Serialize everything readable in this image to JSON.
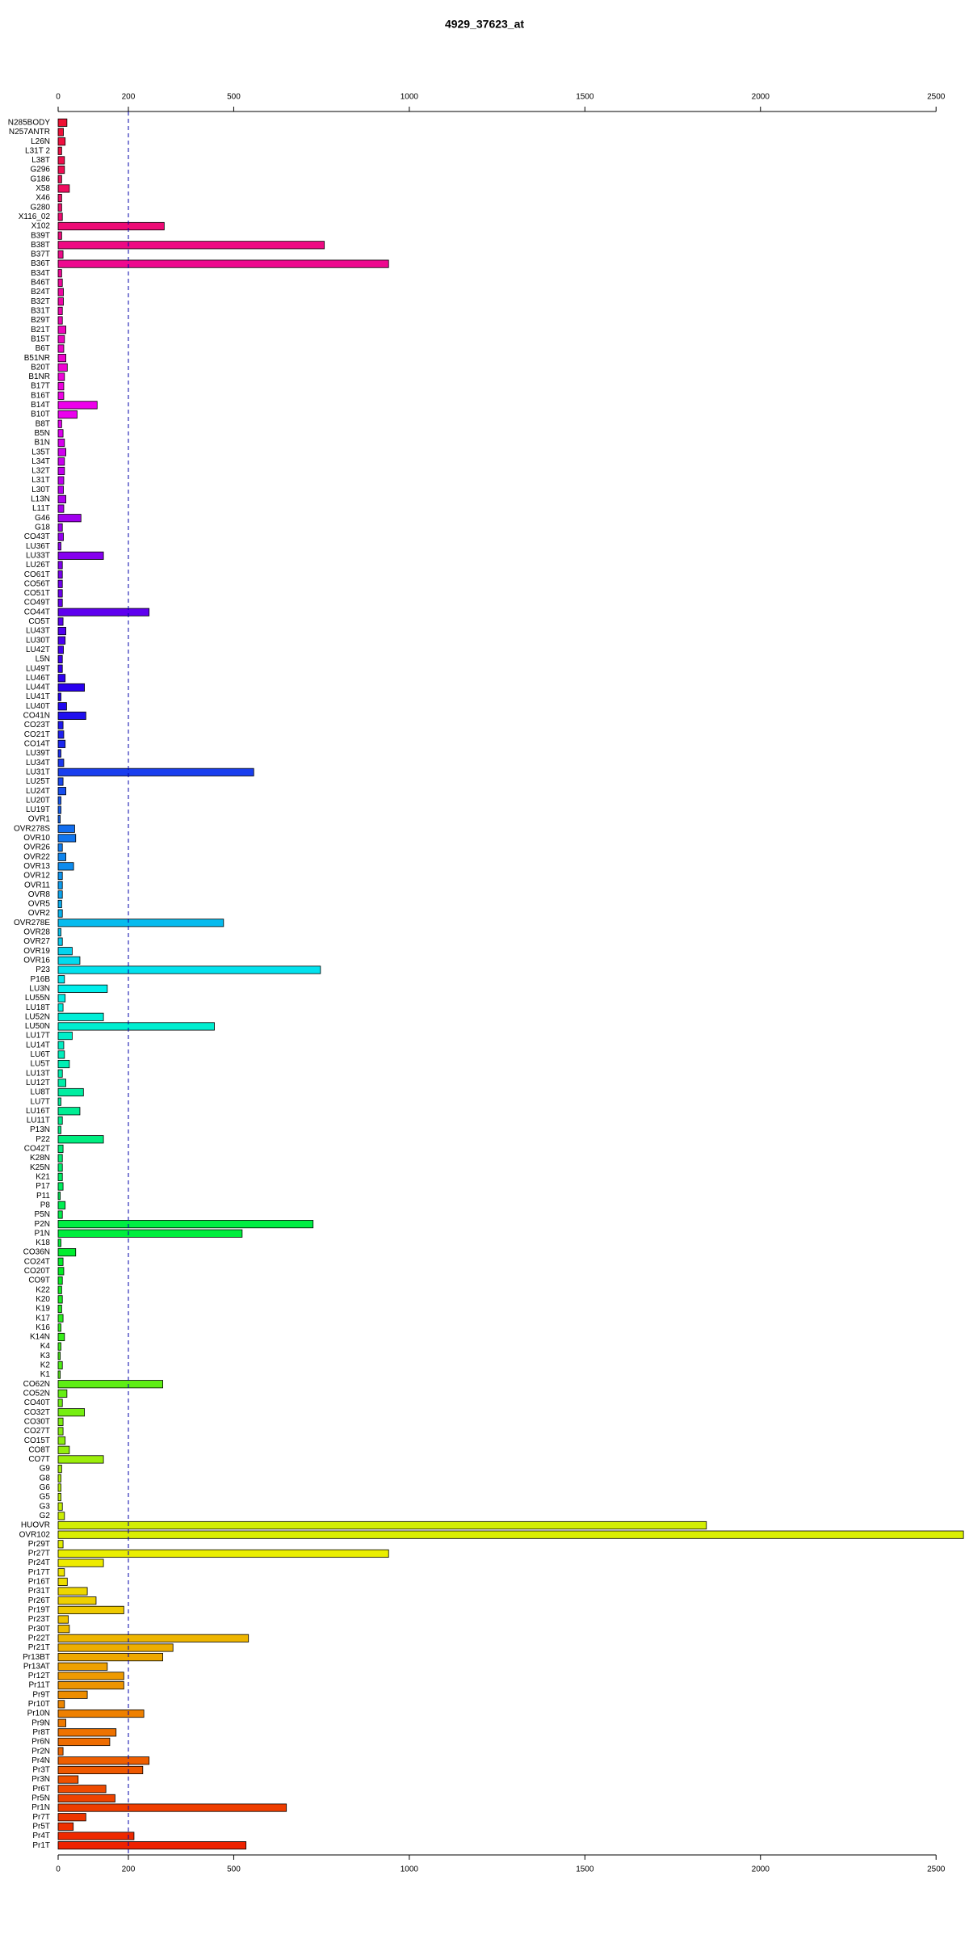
{
  "chart_data": {
    "type": "barh",
    "title": "4929_37623_at",
    "categories": [
      "N285BODY",
      "N257ANTR",
      "L26N",
      "L31T 2",
      "L38T",
      "G296",
      "G186",
      "X58",
      "X46",
      "G280",
      "X116_02",
      "X102",
      "B39T",
      "B38T",
      "B37T",
      "B36T",
      "B34T",
      "B46T",
      "B24T",
      "B32T",
      "B31T",
      "B29T",
      "B21T",
      "B15T",
      "B6T",
      "B51NR",
      "B20T",
      "B1NR",
      "B17T",
      "B16T",
      "B14T",
      "B10T",
      "B8T",
      "B5N",
      "B1N",
      "L35T",
      "L34T",
      "L32T",
      "L31T",
      "L30T",
      "L13N",
      "L11T",
      "G46",
      "G18",
      "CO43T",
      "LU36T",
      "LU33T",
      "LU26T",
      "CO61T",
      "CO56T",
      "CO51T",
      "CO49T",
      "CO44T",
      "CO5T",
      "LU43T",
      "LU30T",
      "LU42T",
      "L5N",
      "LU49T",
      "LU46T",
      "LU44T",
      "LU41T",
      "LU40T",
      "CO41N",
      "CO23T",
      "CO21T",
      "CO14T",
      "LU39T",
      "LU34T",
      "LU31T",
      "LU25T",
      "LU24T",
      "LU20T",
      "LU19T",
      "OVR1",
      "OVR278S",
      "OVR10",
      "OVR26",
      "OVR22",
      "OVR13",
      "OVR12",
      "OVR11",
      "OVR8",
      "OVR5",
      "OVR2",
      "OVR278E",
      "OVR28",
      "OVR27",
      "OVR19",
      "OVR16",
      "P23",
      "P16B",
      "LU3N",
      "LU55N",
      "LU18T",
      "LU52N",
      "LU50N",
      "LU17T",
      "LU14T",
      "LU6T",
      "LU5T",
      "LU13T",
      "LU12T",
      "LU8T",
      "LU7T",
      "LU16T",
      "LU11T",
      "P13N",
      "P22",
      "CO42T",
      "K28N",
      "K25N",
      "K21",
      "P17",
      "P11",
      "P8",
      "P5N",
      "P2N",
      "P1N",
      "K18",
      "CO36N",
      "CO24T",
      "CO20T",
      "CO9T",
      "K22",
      "K20",
      "K19",
      "K17",
      "K16",
      "K14N",
      "K4",
      "K3",
      "K2",
      "K1",
      "CO62N",
      "CO52N",
      "CO40T",
      "CO32T",
      "CO30T",
      "CO27T",
      "CO15T",
      "CO8T",
      "CO7T",
      "G9",
      "G8",
      "G6",
      "G5",
      "G3",
      "G2",
      "HUOVR",
      "OVR102",
      "Pr29T",
      "Pr27T",
      "Pr24T",
      "Pr17T",
      "Pr16T",
      "Pr31T",
      "Pr26T",
      "Pr19T",
      "Pr23T",
      "Pr30T",
      "Pr22T",
      "Pr21T",
      "Pr13BT",
      "Pr13AT",
      "Pr12T",
      "Pr11T",
      "Pr9T",
      "Pr10T",
      "Pr10N",
      "Pr9N",
      "Pr8T",
      "Pr6N",
      "Pr2N",
      "Pr4N",
      "Pr3T",
      "Pr3N",
      "Pr6T",
      "Pr5N",
      "Pr1N",
      "Pr7T",
      "Pr5T",
      "Pr4T",
      "Pr1T"
    ],
    "values": [
      25,
      15,
      20,
      10,
      18,
      18,
      10,
      32,
      10,
      10,
      12,
      302,
      10,
      758,
      14,
      941,
      10,
      12,
      15,
      15,
      12,
      12,
      22,
      18,
      16,
      22,
      26,
      18,
      16,
      16,
      111,
      54,
      10,
      14,
      18,
      22,
      18,
      18,
      16,
      15,
      22,
      16,
      65,
      12,
      15,
      8,
      129,
      12,
      12,
      12,
      12,
      12,
      259,
      14,
      22,
      20,
      15,
      12,
      12,
      20,
      75,
      8,
      24,
      79,
      14,
      16,
      20,
      8,
      16,
      557,
      14,
      22,
      8,
      8,
      6,
      47,
      50,
      12,
      22,
      44,
      12,
      12,
      12,
      10,
      12,
      471,
      8,
      12,
      40,
      62,
      747,
      18,
      140,
      20,
      14,
      129,
      445,
      40,
      16,
      18,
      32,
      12,
      22,
      72,
      8,
      62,
      12,
      8,
      129,
      14,
      12,
      12,
      12,
      14,
      6,
      20,
      12,
      726,
      524,
      8,
      50,
      14,
      16,
      12,
      10,
      12,
      10,
      14,
      8,
      18,
      8,
      6,
      12,
      6,
      298,
      25,
      12,
      75,
      14,
      14,
      20,
      32,
      129,
      10,
      8,
      8,
      8,
      12,
      18,
      1846,
      2578,
      14,
      941,
      129,
      18,
      26,
      83,
      108,
      187,
      29,
      32,
      542,
      327,
      298,
      140,
      187,
      187,
      83,
      18,
      244,
      22,
      165,
      147,
      14,
      259,
      241,
      57,
      136,
      162,
      650,
      79,
      43,
      216,
      535
    ],
    "color_gradient": [
      "#ee1133",
      "#ee00ee",
      "#2200ee",
      "#00eeee",
      "#00ee22",
      "#eeee00",
      "#ee2200"
    ],
    "xlim": [
      0,
      2580
    ],
    "xticks": [
      0,
      200,
      500,
      1000,
      1500,
      2000,
      2500
    ],
    "reference_line": 200
  }
}
